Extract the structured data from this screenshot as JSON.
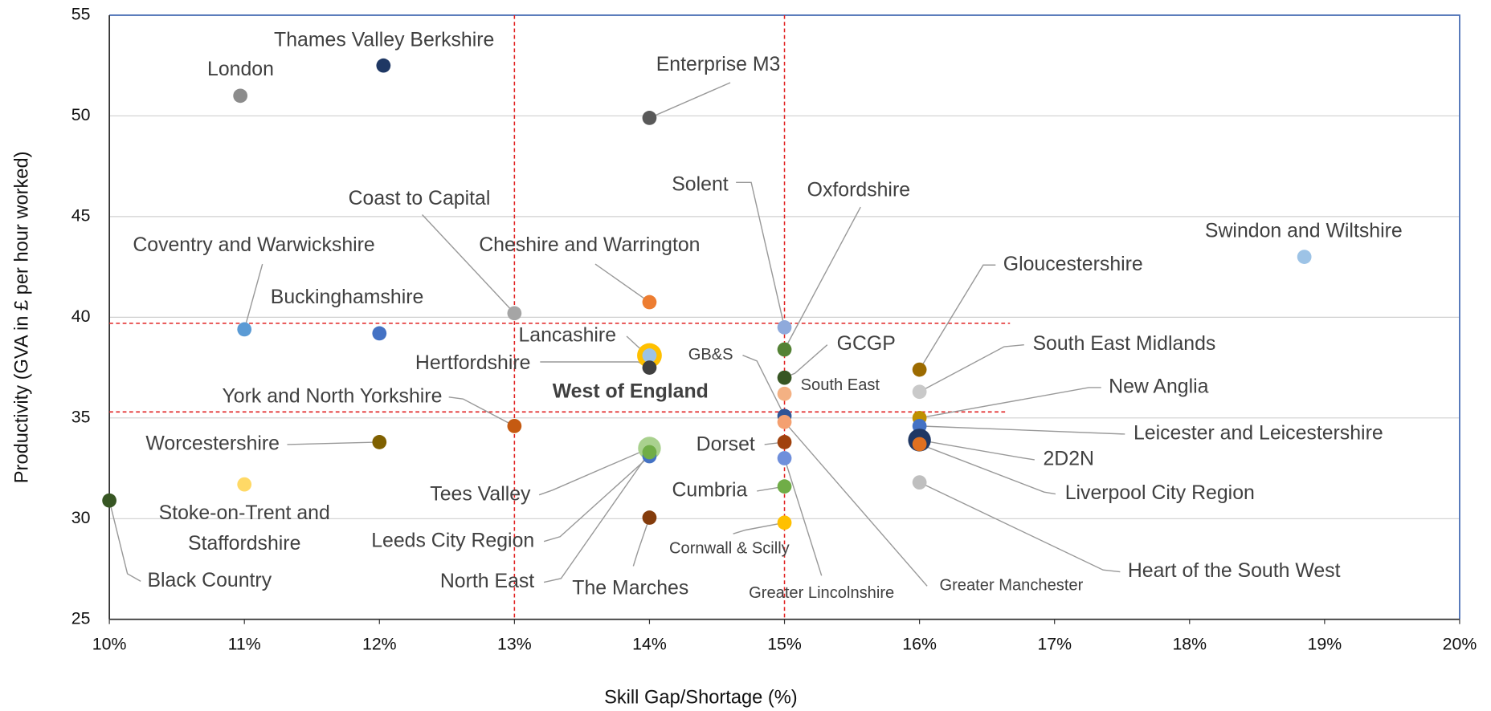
{
  "chart_data": {
    "type": "scatter",
    "x_label": "Skill Gap/Shortage (%)",
    "y_label": "Productivity (GVA in £ per hour worked)",
    "xlim": [
      10,
      20
    ],
    "ylim": [
      25,
      55
    ],
    "xticks": [
      {
        "value": 10,
        "label": "10%"
      },
      {
        "value": 11,
        "label": "11%"
      },
      {
        "value": 12,
        "label": "12%"
      },
      {
        "value": 13,
        "label": "13%"
      },
      {
        "value": 14,
        "label": "14%"
      },
      {
        "value": 15,
        "label": "15%"
      },
      {
        "value": 16,
        "label": "16%"
      },
      {
        "value": 17,
        "label": "17%"
      },
      {
        "value": 18,
        "label": "18%"
      },
      {
        "value": 19,
        "label": "19%"
      },
      {
        "value": 20,
        "label": "20%"
      }
    ],
    "yticks": [
      25,
      30,
      35,
      40,
      45,
      50,
      55
    ],
    "grid": true,
    "reference_lines": [
      {
        "axis": "x",
        "value": 13,
        "color": "#e02020"
      },
      {
        "axis": "x",
        "value": 15,
        "color": "#e02020"
      },
      {
        "axis": "y",
        "value": 39.7,
        "end": 16.67,
        "color": "#e02020"
      },
      {
        "axis": "y",
        "value": 35.3,
        "end": 16.65,
        "color": "#e02020"
      }
    ],
    "points": [
      {
        "name": "Thames Valley Berkshire",
        "x": 12.03,
        "y": 52.5,
        "color": "#1f3864"
      },
      {
        "name": "London",
        "x": 10.97,
        "y": 51.0,
        "color": "#8c8c8c"
      },
      {
        "name": "Enterprise M3",
        "x": 14.0,
        "y": 49.9,
        "color": "#595959"
      },
      {
        "name": "Coast to Capital",
        "x": 13.0,
        "y": 40.2,
        "color": "#a5a5a5"
      },
      {
        "name": "Cheshire and Warrington",
        "x": 14.0,
        "y": 40.75,
        "color": "#ed7d31"
      },
      {
        "name": "Coventry and Warwickshire",
        "x": 11.0,
        "y": 39.4,
        "color": "#5b9bd5"
      },
      {
        "name": "Buckinghamshire",
        "x": 12.0,
        "y": 39.2,
        "color": "#4472c4"
      },
      {
        "name": "Solent",
        "x": 15.0,
        "y": 39.5,
        "color": "#8faadc"
      },
      {
        "name": "Oxfordshire",
        "x": 15.0,
        "y": 38.4,
        "color": "#548235"
      },
      {
        "name": "Swindon and Wiltshire",
        "x": 18.85,
        "y": 43.0,
        "color": "#9dc3e6"
      },
      {
        "name": "Gloucestershire",
        "x": 16.0,
        "y": 37.4,
        "color": "#9c6b00"
      },
      {
        "name": "West of England",
        "x": 14.0,
        "y": 38.1,
        "color": "#ffc000"
      },
      {
        "name": "Lancashire",
        "x": 14.0,
        "y": 38.1,
        "color": "#9dc3e6"
      },
      {
        "name": "Hertfordshire",
        "x": 14.0,
        "y": 37.5,
        "color": "#404040"
      },
      {
        "name": "GCGP",
        "x": 15.0,
        "y": 37.0,
        "color": "#375623"
      },
      {
        "name": "South East",
        "x": 15.0,
        "y": 36.2,
        "color": "#f4b183"
      },
      {
        "name": "GB&S",
        "x": 15.0,
        "y": 35.1,
        "color": "#2f5597"
      },
      {
        "name": "York and North Yorkshire",
        "x": 13.0,
        "y": 34.6,
        "color": "#c55a11"
      },
      {
        "name": "Worcestershire",
        "x": 12.0,
        "y": 33.8,
        "color": "#7f6000"
      },
      {
        "name": "Dorset",
        "x": 15.0,
        "y": 33.8,
        "color": "#a0410d"
      },
      {
        "name": "South East Midlands",
        "x": 16.0,
        "y": 36.3,
        "color": "#c9c9c9"
      },
      {
        "name": "New Anglia",
        "x": 16.0,
        "y": 35.0,
        "color": "#bf9000"
      },
      {
        "name": "Leicester and Leicestershire",
        "x": 16.0,
        "y": 34.6,
        "color": "#4472c4"
      },
      {
        "name": "2D2N",
        "x": 16.0,
        "y": 33.9,
        "color": "#203864"
      },
      {
        "name": "Liverpool City Region",
        "x": 16.0,
        "y": 33.7,
        "color": "#e07020"
      },
      {
        "name": "Heart of the South West",
        "x": 16.0,
        "y": 31.8,
        "color": "#bfbfbf"
      },
      {
        "name": "Cumbria",
        "x": 15.0,
        "y": 31.6,
        "color": "#70ad47"
      },
      {
        "name": "Greater Lincolnshire",
        "x": 15.0,
        "y": 33.0,
        "color": "#6f8fdb"
      },
      {
        "name": "Greater Manchester",
        "x": 15.0,
        "y": 34.8,
        "color": "#f4a070"
      },
      {
        "name": "Cornwall & Scilly",
        "x": 15.0,
        "y": 29.8,
        "color": "#ffc000"
      },
      {
        "name": "Tees Valley",
        "x": 14.0,
        "y": 33.5,
        "color": "#a9d18e"
      },
      {
        "name": "Leeds City Region",
        "x": 14.0,
        "y": 33.1,
        "color": "#4472c4"
      },
      {
        "name": "North East",
        "x": 14.0,
        "y": 33.3,
        "color": "#70ad47"
      },
      {
        "name": "The Marches",
        "x": 14.0,
        "y": 30.05,
        "color": "#843c0c"
      },
      {
        "name": [
          "Stoke-on-Trent and",
          "Staffordshire"
        ],
        "x": 11.0,
        "y": 31.7,
        "color": "#ffd966"
      },
      {
        "name": "Black Country",
        "x": 10.0,
        "y": 30.9,
        "color": "#375623"
      }
    ]
  }
}
